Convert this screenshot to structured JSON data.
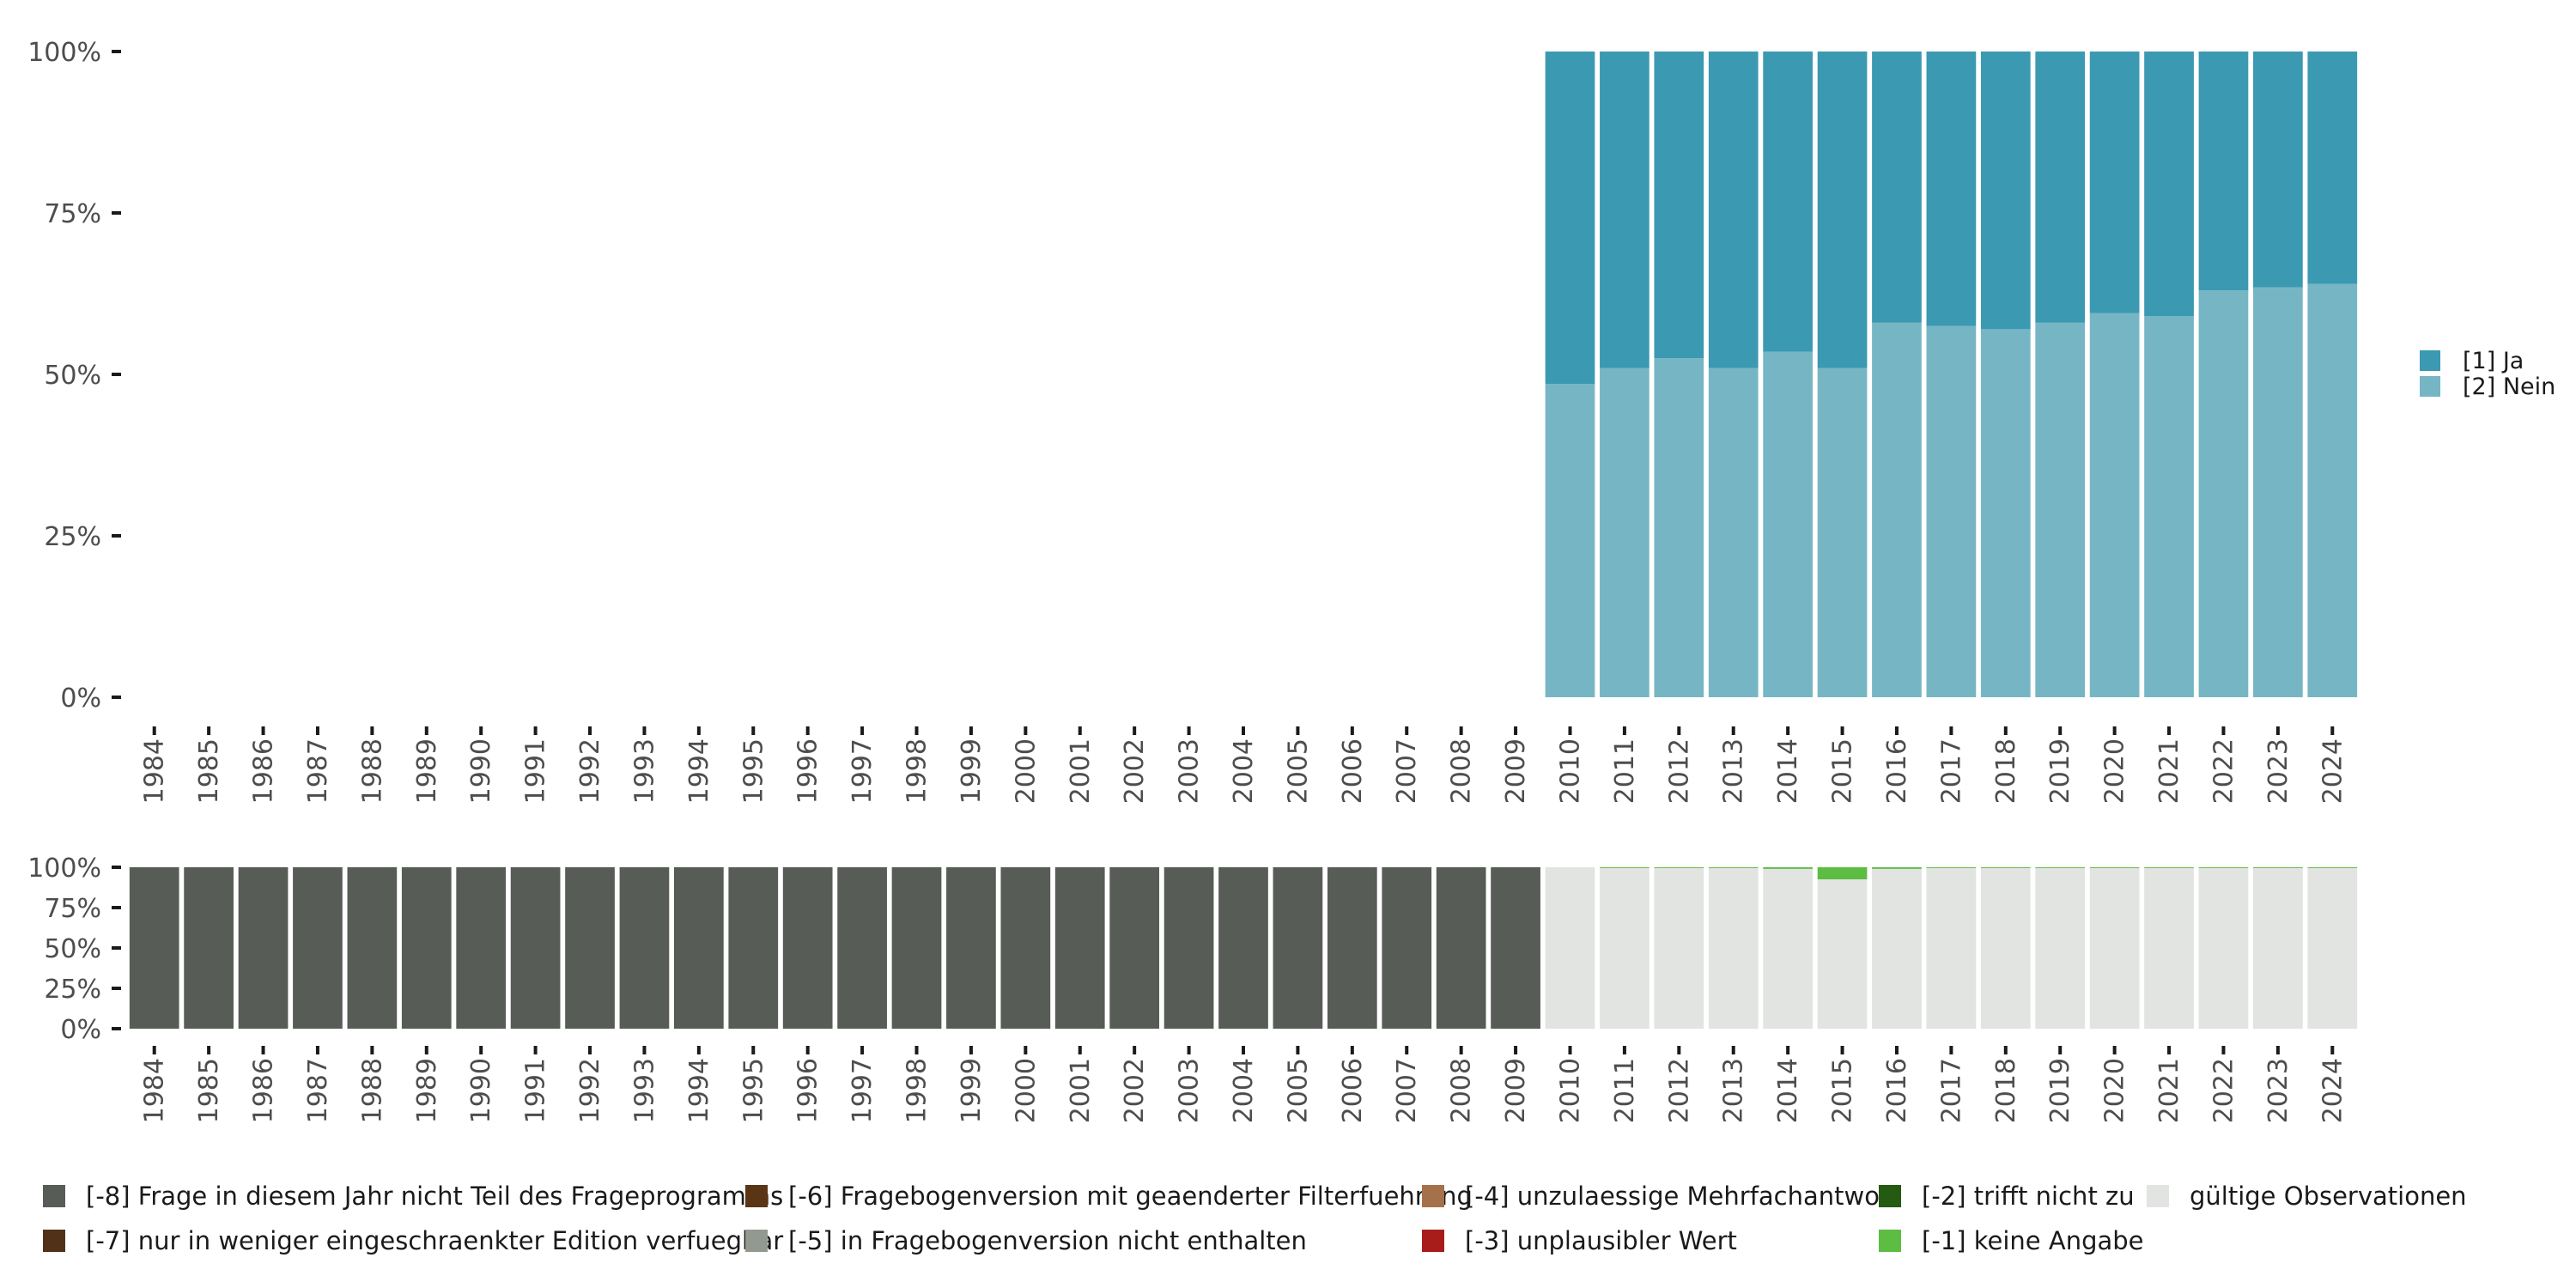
{
  "chart_data": [
    {
      "type": "stacked-bar",
      "panel": "top",
      "title": "",
      "xlabel": "",
      "ylabel": "",
      "ylim": [
        0,
        100
      ],
      "y_ticks": [
        "0%",
        "25%",
        "50%",
        "75%",
        "100%"
      ],
      "categories": [
        "1984",
        "1985",
        "1986",
        "1987",
        "1988",
        "1989",
        "1990",
        "1991",
        "1992",
        "1993",
        "1994",
        "1995",
        "1996",
        "1997",
        "1998",
        "1999",
        "2000",
        "2001",
        "2002",
        "2003",
        "2004",
        "2005",
        "2006",
        "2007",
        "2008",
        "2009",
        "2010",
        "2011",
        "2012",
        "2013",
        "2014",
        "2015",
        "2016",
        "2017",
        "2018",
        "2019",
        "2020",
        "2021",
        "2022",
        "2023",
        "2024"
      ],
      "series": [
        {
          "name": "[2] Nein",
          "color": "#76b6c4",
          "values": [
            null,
            null,
            null,
            null,
            null,
            null,
            null,
            null,
            null,
            null,
            null,
            null,
            null,
            null,
            null,
            null,
            null,
            null,
            null,
            null,
            null,
            null,
            null,
            null,
            null,
            null,
            48.5,
            51,
            52.5,
            51,
            53.5,
            51,
            58,
            57.5,
            57,
            58,
            59.5,
            59,
            63,
            63.5,
            64
          ]
        },
        {
          "name": "[1] Ja",
          "color": "#3b99b1",
          "values": [
            null,
            null,
            null,
            null,
            null,
            null,
            null,
            null,
            null,
            null,
            null,
            null,
            null,
            null,
            null,
            null,
            null,
            null,
            null,
            null,
            null,
            null,
            null,
            null,
            null,
            null,
            51.5,
            49,
            47.5,
            49,
            46.5,
            49,
            42,
            42.5,
            43,
            42,
            40.5,
            41,
            37,
            36.5,
            36
          ]
        }
      ],
      "legend": {
        "position": "right",
        "items": [
          {
            "label": "[1] Ja",
            "color": "#3b99b1"
          },
          {
            "label": "[2] Nein",
            "color": "#76b6c4"
          }
        ]
      }
    },
    {
      "type": "stacked-bar",
      "panel": "bottom",
      "title": "",
      "xlabel": "",
      "ylabel": "",
      "ylim": [
        0,
        100
      ],
      "y_ticks": [
        "0%",
        "25%",
        "50%",
        "75%",
        "100%"
      ],
      "categories": [
        "1984",
        "1985",
        "1986",
        "1987",
        "1988",
        "1989",
        "1990",
        "1991",
        "1992",
        "1993",
        "1994",
        "1995",
        "1996",
        "1997",
        "1998",
        "1999",
        "2000",
        "2001",
        "2002",
        "2003",
        "2004",
        "2005",
        "2006",
        "2007",
        "2008",
        "2009",
        "2010",
        "2011",
        "2012",
        "2013",
        "2014",
        "2015",
        "2016",
        "2017",
        "2018",
        "2019",
        "2020",
        "2021",
        "2022",
        "2023",
        "2024"
      ],
      "series": [
        {
          "name": "gültige Observationen",
          "color": "#e1e4e0",
          "values": [
            0,
            0,
            0,
            0,
            0,
            0,
            0,
            0,
            0,
            0,
            0,
            0,
            0,
            0,
            0,
            0,
            0,
            0,
            0,
            0,
            0,
            0,
            0,
            0,
            0,
            0,
            100,
            99.5,
            99.5,
            99.5,
            99,
            92.5,
            99,
            99.5,
            99.5,
            99.5,
            99.5,
            99.5,
            99.5,
            99.5,
            99.5
          ]
        },
        {
          "name": "[-1] keine Angabe",
          "color": "#5cbd42",
          "values": [
            0,
            0,
            0,
            0,
            0,
            0,
            0,
            0,
            0,
            0,
            0,
            0,
            0,
            0,
            0,
            0,
            0,
            0,
            0,
            0,
            0,
            0,
            0,
            0,
            0,
            0,
            0,
            0.5,
            0.5,
            0.5,
            1,
            7.5,
            1,
            0.5,
            0.5,
            0.5,
            0.5,
            0.5,
            0.5,
            0.5,
            0.5
          ]
        },
        {
          "name": "[-8] Frage in diesem Jahr nicht Teil des Frageprogramms",
          "color": "#575c56",
          "values": [
            100,
            100,
            100,
            100,
            100,
            100,
            100,
            100,
            100,
            100,
            100,
            100,
            100,
            100,
            100,
            100,
            100,
            100,
            100,
            100,
            100,
            100,
            100,
            100,
            100,
            100,
            0,
            0,
            0,
            0,
            0,
            0,
            0,
            0,
            0,
            0,
            0,
            0,
            0,
            0,
            0
          ]
        }
      ],
      "legend": {
        "position": "bottom",
        "items": [
          {
            "label": "[-8] Frage in diesem Jahr nicht Teil des Frageprogramms",
            "color": "#575c56"
          },
          {
            "label": "[-7] nur in weniger eingeschraenkter Edition verfuegbar",
            "color": "#513218"
          },
          {
            "label": "[-6] Fragebogenversion mit geaenderter Filterfuehrung",
            "color": "#5a3515"
          },
          {
            "label": "[-5] in Fragebogenversion nicht enthalten",
            "color": "#929a8f"
          },
          {
            "label": "[-4] unzulaessige Mehrfachantwort",
            "color": "#a4714b"
          },
          {
            "label": "[-3] unplausibler Wert",
            "color": "#a81c1a"
          },
          {
            "label": "[-2] trifft nicht zu",
            "color": "#245a11"
          },
          {
            "label": "[-1] keine Angabe",
            "color": "#5cbd42"
          },
          {
            "label": "gültige Observationen",
            "color": "#e1e4e0"
          }
        ]
      }
    }
  ]
}
